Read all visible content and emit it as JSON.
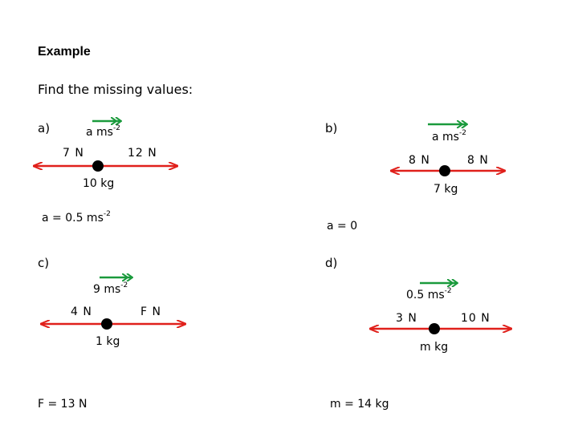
{
  "title": "Example",
  "subtitle": "Find the missing values:",
  "colors": {
    "force": "#e0201b",
    "accel": "#1a9a3c",
    "mass": "#000000"
  },
  "problems": {
    "a": {
      "label": "a)",
      "accel": "a ms",
      "accel_exp": "-2",
      "left_force": "7 N",
      "right_force": "12 N",
      "mass": "10 kg",
      "answer": "a = 0.5 ms",
      "answer_exp": "-2"
    },
    "b": {
      "label": "b)",
      "accel": "a ms",
      "accel_exp": "-2",
      "left_force": "8 N",
      "right_force": "8 N",
      "mass": "7 kg",
      "answer": "a = 0",
      "answer_exp": ""
    },
    "c": {
      "label": "c)",
      "accel": "9 ms",
      "accel_exp": "-2",
      "left_force": "4 N",
      "right_force": "F N",
      "mass": "1 kg",
      "answer": "F = 13 N",
      "answer_exp": ""
    },
    "d": {
      "label": "d)",
      "accel": "0.5 ms",
      "accel_exp": "-2",
      "left_force": "3 N",
      "right_force": "10 N",
      "mass": "m kg",
      "answer": "m = 14 kg",
      "answer_exp": ""
    }
  }
}
